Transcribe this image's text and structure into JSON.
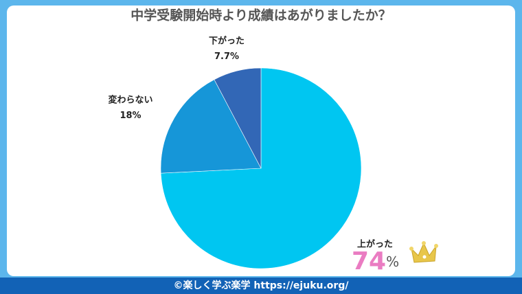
{
  "chart_data": {
    "type": "pie",
    "title": "中学受験開始時より成績はあがりましたか？",
    "categories": [
      "上がった",
      "変わらない",
      "下がった"
    ],
    "values": [
      74,
      18,
      7.7
    ],
    "unit": "%",
    "colors": [
      "#00c6f1",
      "#1696d8",
      "#3267b6"
    ]
  },
  "footer": "©楽しく学ぶ楽学 https://ejuku.org/"
}
